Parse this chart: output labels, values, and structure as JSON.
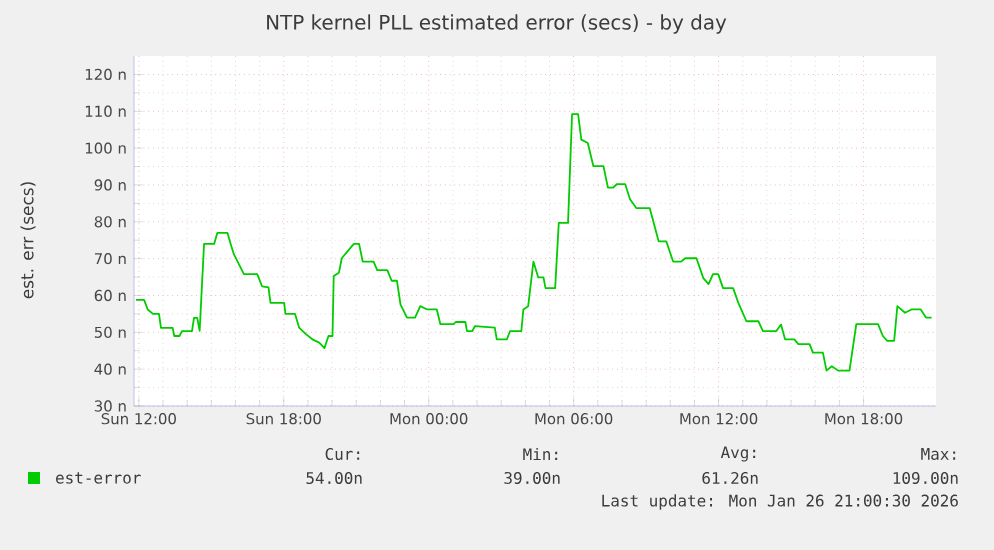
{
  "chart_data": {
    "type": "line",
    "title": "NTP kernel PLL estimated error (secs) - by day",
    "ylabel": "est. err (secs)",
    "xlim": [
      "2026-01-25T11:48",
      "2026-01-26T21:00"
    ],
    "ylim": [
      30,
      125
    ],
    "xticks": [
      {
        "value": "2026-01-25T12:00",
        "label": "Sun 12:00"
      },
      {
        "value": "2026-01-25T18:00",
        "label": "Sun 18:00"
      },
      {
        "value": "2026-01-26T00:00",
        "label": "Mon 00:00"
      },
      {
        "value": "2026-01-26T06:00",
        "label": "Mon 06:00"
      },
      {
        "value": "2026-01-26T12:00",
        "label": "Mon 12:00"
      },
      {
        "value": "2026-01-26T18:00",
        "label": "Mon 18:00"
      }
    ],
    "yticks": [
      {
        "value": 30,
        "label": "30 n"
      },
      {
        "value": 40,
        "label": "40 n"
      },
      {
        "value": 50,
        "label": "50 n"
      },
      {
        "value": 60,
        "label": "60 n"
      },
      {
        "value": 70,
        "label": "70 n"
      },
      {
        "value": 80,
        "label": "80 n"
      },
      {
        "value": 90,
        "label": "90 n"
      },
      {
        "value": 100,
        "label": "100 n"
      },
      {
        "value": 110,
        "label": "110 n"
      },
      {
        "value": 120,
        "label": "120 n"
      }
    ],
    "grid": true,
    "legend": "bottom",
    "marker": "none",
    "line_style": "solid",
    "series": [
      {
        "name": "est-error",
        "color": "#00cc00",
        "x": [
          "2026-01-25T11:53",
          "2026-01-25T12:13",
          "2026-01-25T12:22",
          "2026-01-25T12:35",
          "2026-01-25T12:50",
          "2026-01-25T12:55",
          "2026-01-25T13:24",
          "2026-01-25T13:28",
          "2026-01-25T13:41",
          "2026-01-25T13:47",
          "2026-01-25T14:12",
          "2026-01-25T14:17",
          "2026-01-25T14:25",
          "2026-01-25T14:31",
          "2026-01-25T14:42",
          "2026-01-25T15:07",
          "2026-01-25T15:15",
          "2026-01-25T15:40",
          "2026-01-25T15:48",
          "2026-01-25T15:56",
          "2026-01-25T16:21",
          "2026-01-25T16:54",
          "2026-01-25T17:06",
          "2026-01-25T17:22",
          "2026-01-25T17:27",
          "2026-01-25T18:01",
          "2026-01-25T18:04",
          "2026-01-25T18:28",
          "2026-01-25T18:38",
          "2026-01-25T18:55",
          "2026-01-25T19:11",
          "2026-01-25T19:28",
          "2026-01-25T19:41",
          "2026-01-25T19:51",
          "2026-01-25T20:01",
          "2026-01-25T20:04",
          "2026-01-25T20:17",
          "2026-01-25T20:24",
          "2026-01-25T20:46",
          "2026-01-25T20:54",
          "2026-01-25T21:07",
          "2026-01-25T21:16",
          "2026-01-25T21:43",
          "2026-01-25T21:52",
          "2026-01-25T22:17",
          "2026-01-25T22:28",
          "2026-01-25T22:41",
          "2026-01-25T22:50",
          "2026-01-25T23:06",
          "2026-01-25T23:26",
          "2026-01-25T23:39",
          "2026-01-25T23:56",
          "2026-01-26T00:20",
          "2026-01-26T00:29",
          "2026-01-26T01:02",
          "2026-01-26T01:07",
          "2026-01-26T01:31",
          "2026-01-26T01:35",
          "2026-01-26T01:48",
          "2026-01-26T01:55",
          "2026-01-26T02:44",
          "2026-01-26T02:49",
          "2026-01-26T03:14",
          "2026-01-26T03:22",
          "2026-01-26T03:50",
          "2026-01-26T03:55",
          "2026-01-26T04:07",
          "2026-01-26T04:20",
          "2026-01-26T04:32",
          "2026-01-26T04:45",
          "2026-01-26T04:50",
          "2026-01-26T05:14",
          "2026-01-26T05:23",
          "2026-01-26T05:46",
          "2026-01-26T05:56",
          "2026-01-26T06:11",
          "2026-01-26T06:19",
          "2026-01-26T06:35",
          "2026-01-26T06:49",
          "2026-01-26T07:14",
          "2026-01-26T07:25",
          "2026-01-26T07:38",
          "2026-01-26T07:47",
          "2026-01-26T08:08",
          "2026-01-26T08:20",
          "2026-01-26T08:36",
          "2026-01-26T09:09",
          "2026-01-26T09:31",
          "2026-01-26T09:50",
          "2026-01-26T10:07",
          "2026-01-26T10:27",
          "2026-01-26T10:37",
          "2026-01-26T11:05",
          "2026-01-26T11:22",
          "2026-01-26T11:35",
          "2026-01-26T11:46",
          "2026-01-26T11:59",
          "2026-01-26T12:11",
          "2026-01-26T12:36",
          "2026-01-26T12:49",
          "2026-01-26T13:09",
          "2026-01-26T13:39",
          "2026-01-26T13:50",
          "2026-01-26T14:23",
          "2026-01-26T14:35",
          "2026-01-26T14:45",
          "2026-01-26T15:08",
          "2026-01-26T15:18",
          "2026-01-26T15:46",
          "2026-01-26T15:54",
          "2026-01-26T16:19",
          "2026-01-26T16:28",
          "2026-01-26T16:41",
          "2026-01-26T16:57",
          "2026-01-26T17:25",
          "2026-01-26T17:42",
          "2026-01-26T18:36",
          "2026-01-26T18:48",
          "2026-01-26T18:59",
          "2026-01-26T19:16",
          "2026-01-26T19:24",
          "2026-01-26T19:43",
          "2026-01-26T19:59",
          "2026-01-26T20:22",
          "2026-01-26T20:35",
          "2026-01-26T20:49"
        ],
        "values": [
          58.8,
          58.8,
          56.2,
          55,
          55,
          51.2,
          51.2,
          49,
          49,
          50.3,
          50.3,
          53.9,
          53.9,
          50.4,
          74,
          74,
          77,
          77,
          74,
          71.2,
          65.8,
          65.8,
          62.5,
          62.2,
          58,
          58,
          55,
          55,
          51.3,
          49.5,
          48.1,
          47.2,
          45.7,
          49,
          49,
          65.3,
          66.2,
          70.1,
          73,
          74,
          74,
          69.2,
          69.2,
          66.9,
          66.9,
          64,
          64,
          57.5,
          54,
          54,
          57.1,
          56.2,
          56.2,
          52.2,
          52.2,
          52.8,
          52.8,
          50.3,
          50.3,
          51.7,
          51.3,
          48.1,
          48.1,
          50.3,
          50.3,
          56.2,
          57.1,
          69.2,
          64.9,
          64.9,
          62,
          62,
          79.7,
          79.7,
          109.2,
          109.2,
          102.3,
          101.4,
          95.1,
          95.1,
          89.3,
          89.3,
          90.2,
          90.2,
          86.1,
          83.7,
          83.7,
          74.7,
          74.7,
          69.2,
          69.2,
          70.1,
          70.1,
          64.7,
          63.1,
          65.8,
          65.8,
          62,
          62,
          58,
          53,
          53,
          50.3,
          50.3,
          52.1,
          48.1,
          48.1,
          46.8,
          46.8,
          44.5,
          44.5,
          39.6,
          40.8,
          39.6,
          39.6,
          52.2,
          52.2,
          49,
          47.7,
          47.7,
          57.1,
          55.3,
          56.2,
          56.2,
          54,
          54
        ]
      }
    ],
    "annotations": [
      "Cur:",
      "54.00n",
      "Min:",
      "39.00n",
      "Avg:",
      "61.26n",
      "Max:",
      "109.00n",
      "Last update: Mon Jan 26 21:00:30 2026"
    ]
  }
}
